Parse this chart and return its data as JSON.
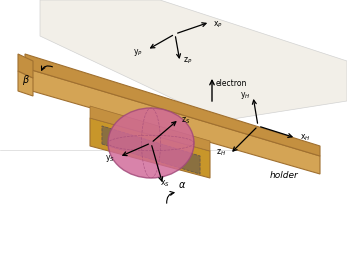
{
  "bg_color": "#ffffff",
  "holder_top_color": "#d4a455",
  "holder_side_color": "#c49040",
  "holder_dark_color": "#a07030",
  "holder_light_color": "#e8c878",
  "holder_inner_color": "#c8962a",
  "sphere_color": "#d06898",
  "sphere_edge_color": "#a04878",
  "sphere_alpha": 0.82,
  "plane_color": "#f0ede4",
  "plane_edge_color": "#cccccc",
  "arrow_color": "#111111",
  "alpha_text": "α",
  "beta_text": "β",
  "xs": "x$_S$",
  "ys": "y$_S$",
  "zs": "z$_S$",
  "xH": "x$_H$",
  "yH": "y$_H$",
  "zH": "z$_H$",
  "xP": "x$_P$",
  "yP": "y$_P$",
  "zP": "z$_P$",
  "holder_label": "holder",
  "electron_label": "electron"
}
